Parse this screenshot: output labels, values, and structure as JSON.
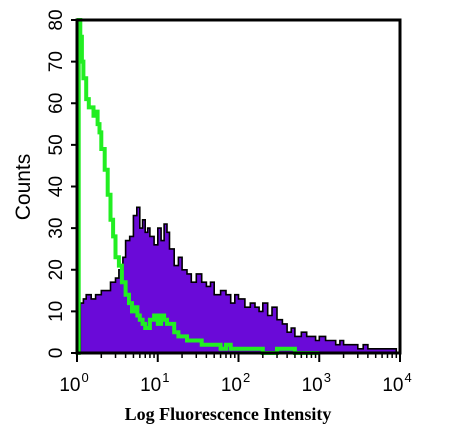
{
  "chart_data": {
    "type": "area",
    "xlabel": "Log Fluorescence Intensity",
    "ylabel": "Counts",
    "x_scale": "log",
    "xlim": [
      1,
      10000
    ],
    "ylim": [
      0,
      80
    ],
    "grid": false,
    "legend": "none",
    "x_ticks": [
      {
        "value": 1,
        "base": "10",
        "exp": "0"
      },
      {
        "value": 10,
        "base": "10",
        "exp": "1"
      },
      {
        "value": 100,
        "base": "10",
        "exp": "2"
      },
      {
        "value": 1000,
        "base": "10",
        "exp": "3"
      },
      {
        "value": 10000,
        "base": "10",
        "exp": "4"
      }
    ],
    "y_ticks": [
      {
        "value": 0,
        "label": "0"
      },
      {
        "value": 10,
        "label": "10"
      },
      {
        "value": 20,
        "label": "20"
      },
      {
        "value": 30,
        "label": "30"
      },
      {
        "value": 40,
        "label": "40"
      },
      {
        "value": 50,
        "label": "50"
      },
      {
        "value": 60,
        "label": "60"
      },
      {
        "value": 70,
        "label": "70"
      },
      {
        "value": 80,
        "label": "80"
      }
    ],
    "series": [
      {
        "style": "filled-histogram",
        "fill_color": "#6a0ad8",
        "edge_color": "#000000",
        "x": [
          1.0,
          1.1,
          1.2,
          1.3,
          1.5,
          1.7,
          2.0,
          2.3,
          2.6,
          3.0,
          3.3,
          3.7,
          4.0,
          4.5,
          5.0,
          5.5,
          6.0,
          6.5,
          7.0,
          7.5,
          8.0,
          9.0,
          10,
          11,
          12,
          13,
          14,
          16,
          18,
          20,
          23,
          26,
          30,
          35,
          40,
          45,
          50,
          60,
          70,
          80,
          90,
          100,
          120,
          140,
          160,
          180,
          200,
          230,
          260,
          300,
          350,
          400,
          450,
          500,
          600,
          700,
          800,
          900,
          1000,
          1200,
          1400,
          1600,
          1800,
          2000,
          2500,
          3000,
          3500,
          4000,
          5000,
          6000,
          7000,
          8000,
          9000,
          10000
        ],
        "values": [
          0,
          12,
          13,
          14,
          13,
          14,
          15,
          15,
          17,
          18,
          20,
          23,
          27,
          28,
          33,
          35,
          30,
          32,
          29,
          30,
          28,
          26,
          30,
          27,
          31,
          29,
          25,
          21,
          23,
          20,
          19,
          17,
          19,
          17,
          16,
          17,
          14,
          15,
          14,
          12,
          14,
          13,
          11,
          12,
          11,
          10,
          12,
          9,
          11,
          8,
          7,
          5,
          6,
          4,
          5,
          4,
          4,
          3,
          4,
          3,
          3,
          2,
          3,
          2,
          2,
          1,
          2,
          1,
          1,
          1,
          1,
          1,
          0,
          0
        ]
      },
      {
        "style": "line",
        "line_color": "#22ee22",
        "x": [
          1.0,
          1.05,
          1.1,
          1.15,
          1.2,
          1.3,
          1.4,
          1.5,
          1.6,
          1.7,
          1.8,
          1.9,
          2.0,
          2.2,
          2.4,
          2.6,
          2.8,
          3.0,
          3.3,
          3.6,
          4.0,
          4.4,
          4.8,
          5.2,
          5.6,
          6.0,
          6.5,
          7.0,
          7.5,
          8.0,
          9.0,
          10,
          11,
          12,
          13,
          14,
          16,
          18,
          20,
          23,
          26,
          30,
          35,
          40,
          50,
          60,
          70,
          80,
          100,
          120,
          150,
          200,
          300,
          500,
          1000
        ],
        "values": [
          0,
          80,
          76,
          70,
          66,
          61,
          59,
          59,
          57,
          58,
          55,
          53,
          49,
          44,
          38,
          32,
          28,
          23,
          21,
          17,
          14,
          12,
          10,
          11,
          9,
          8,
          7,
          6,
          6,
          8,
          9,
          7,
          9,
          8,
          7,
          7,
          5,
          4,
          4,
          3,
          3,
          3,
          2,
          2,
          2,
          1,
          2,
          1,
          1,
          1,
          1,
          0,
          1,
          0,
          0
        ]
      }
    ]
  }
}
